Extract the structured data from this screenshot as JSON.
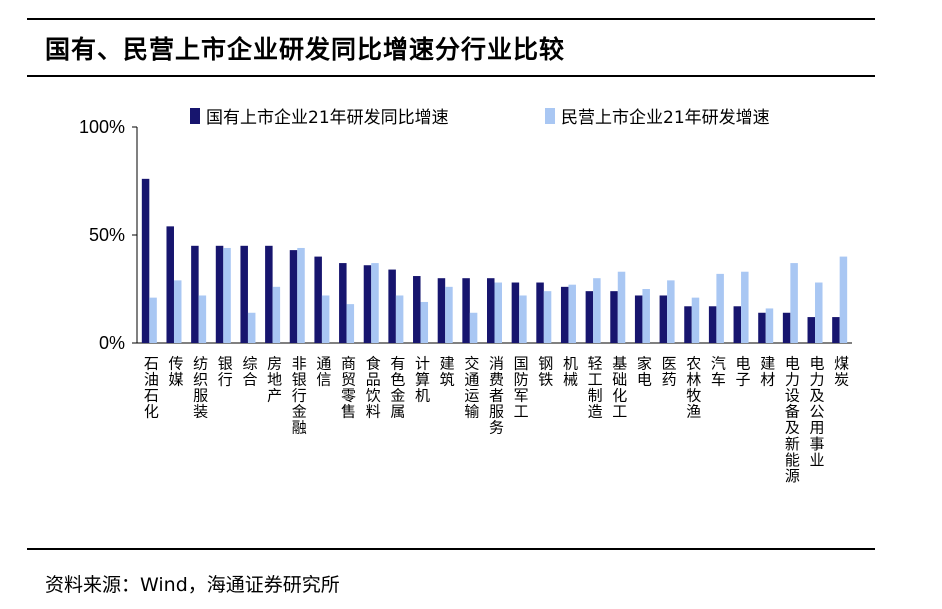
{
  "title": "国有、民营上市企业研发同比增速分行业比较",
  "source": "资料来源：Wind，海通证券研究所",
  "colors": {
    "series_soe": "#17156e",
    "series_private": "#a9c7f3",
    "axis": "#000000"
  },
  "chart_data": {
    "type": "bar",
    "categories": [
      "石油石化",
      "传媒",
      "纺织服装",
      "银行",
      "综合",
      "房地产",
      "非银行金融",
      "通信",
      "商贸零售",
      "食品饮料",
      "有色金属",
      "计算机",
      "建筑",
      "交通运输",
      "消费者服务",
      "国防军工",
      "钢铁",
      "机械",
      "轻工制造",
      "基础化工",
      "家电",
      "医药",
      "农林牧渔",
      "汽车",
      "电子",
      "建材",
      "电力设备及新能源",
      "电力及公用事业",
      "煤炭"
    ],
    "series": [
      {
        "name": "国有上市企业21年研发同比增速",
        "values": [
          76,
          54,
          45,
          45,
          45,
          45,
          43,
          40,
          37,
          36,
          34,
          31,
          30,
          30,
          30,
          28,
          28,
          26,
          24,
          24,
          22,
          22,
          17,
          17,
          17,
          14,
          14,
          12,
          12
        ]
      },
      {
        "name": "民营上市企业21年研发增速",
        "values": [
          21,
          29,
          22,
          44,
          14,
          26,
          44,
          22,
          18,
          37,
          22,
          19,
          26,
          14,
          28,
          22,
          24,
          27,
          30,
          33,
          25,
          29,
          21,
          32,
          33,
          16,
          37,
          28,
          40
        ]
      }
    ],
    "yticks": [
      "0%",
      "50%",
      "100%"
    ],
    "ylim": [
      0,
      100
    ],
    "legend": "top",
    "grid": false
  }
}
